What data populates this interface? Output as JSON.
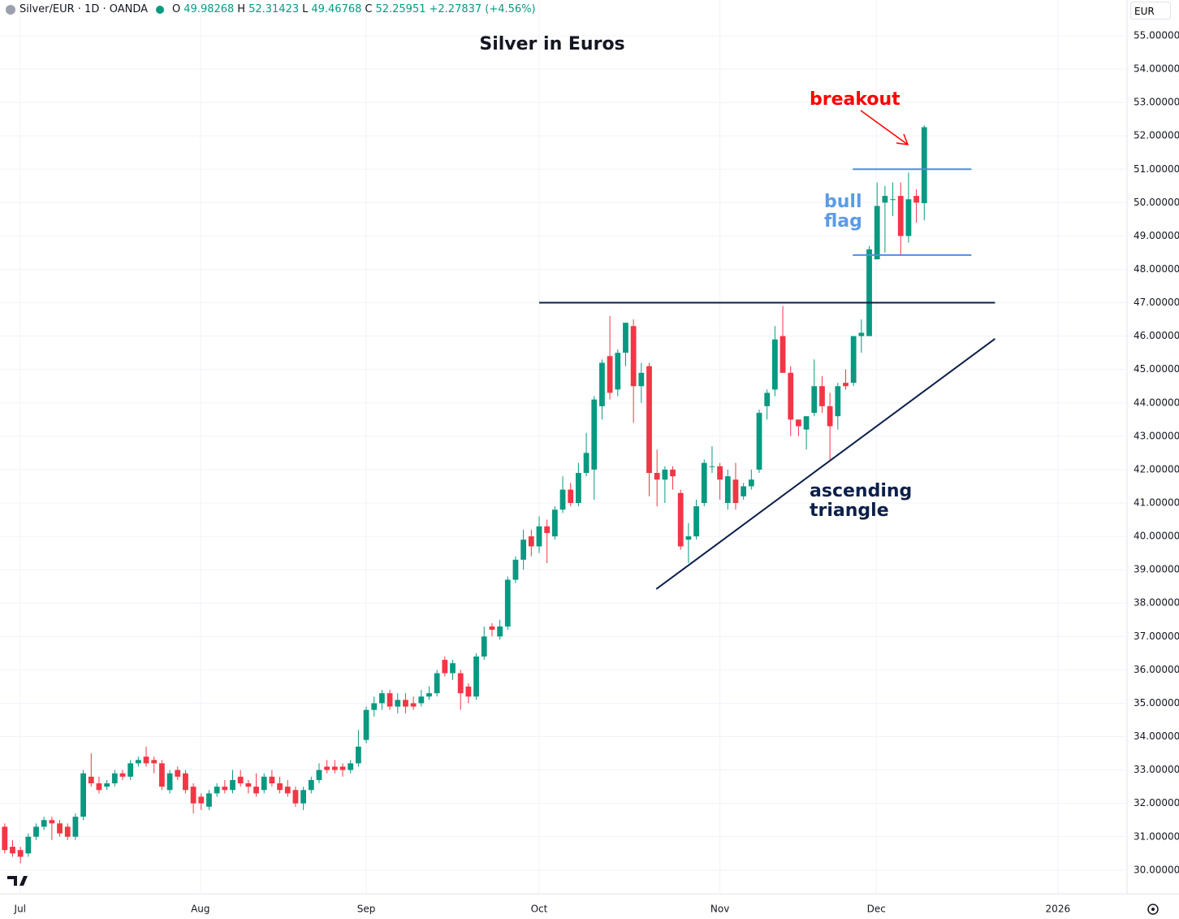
{
  "header": {
    "symbol": "Silver/EUR · 1D · OANDA",
    "o_label": "O",
    "o": "49.98268",
    "h_label": "H",
    "h": "52.31423",
    "l_label": "L",
    "l": "49.46768",
    "c_label": "C",
    "c": "52.25951",
    "change": "+2.27837 (+4.56%)",
    "currency": "EUR"
  },
  "chart_data": {
    "type": "candlestick",
    "title": "Silver in Euros",
    "open": [
      31.3,
      30.7,
      30.6,
      30.5,
      31.0,
      31.3,
      31.5,
      31.4,
      31.3,
      31.0,
      31.6,
      32.8,
      32.6,
      32.5,
      32.6,
      32.9,
      32.8,
      33.2,
      33.4,
      33.3,
      33.2,
      32.4,
      33.0,
      32.9,
      32.5,
      32.2,
      31.9,
      32.3,
      32.5,
      32.4,
      32.8,
      32.6,
      32.5,
      32.4,
      32.8,
      32.6,
      32.5,
      32.4,
      32.0,
      32.4,
      32.7,
      33.1,
      33.1,
      33.1,
      33.0,
      33.2,
      33.9,
      34.8,
      35.0,
      35.3,
      34.9,
      35.1,
      35.0,
      35.0,
      35.2,
      35.3,
      36.3,
      35.9,
      35.9,
      35.5,
      35.2,
      36.4,
      37.3,
      37.0,
      37.3,
      38.7,
      39.3,
      40.0,
      39.7,
      40.3,
      40.0,
      40.8,
      41.4,
      41.0,
      41.9,
      42.0,
      43.9,
      45.4,
      44.4,
      45.5,
      46.3,
      44.5,
      45.1,
      41.9,
      41.7,
      42.0,
      41.3,
      39.9,
      40.0,
      41.0,
      42.1,
      42.1,
      41.0,
      41.7,
      41.2,
      41.5,
      42.0,
      43.9,
      44.4,
      46.0,
      44.9,
      43.5,
      43.2,
      43.7,
      44.5,
      43.9,
      43.6,
      44.6,
      44.6,
      46.0,
      46.0,
      48.3,
      50.0,
      50.1,
      50.2,
      49.0,
      50.2,
      49.98268
    ],
    "high": [
      31.4,
      30.9,
      30.7,
      31.1,
      31.4,
      31.6,
      31.6,
      31.5,
      31.4,
      31.7,
      33.0,
      33.5,
      32.8,
      32.7,
      33.0,
      33.0,
      33.3,
      33.4,
      33.7,
      33.4,
      33.3,
      33.0,
      33.1,
      33.0,
      32.6,
      32.3,
      32.4,
      32.6,
      32.7,
      33.0,
      33.0,
      32.7,
      32.9,
      32.9,
      33.0,
      32.8,
      32.7,
      32.5,
      32.5,
      32.8,
      33.2,
      33.3,
      33.3,
      33.2,
      33.3,
      34.2,
      34.9,
      35.2,
      35.4,
      35.4,
      35.3,
      35.3,
      35.2,
      35.4,
      35.5,
      36.0,
      36.4,
      36.3,
      36.0,
      35.6,
      36.5,
      37.3,
      37.4,
      37.5,
      38.8,
      39.4,
      40.2,
      40.2,
      40.6,
      40.5,
      40.9,
      41.8,
      41.6,
      42.2,
      43.1,
      44.2,
      45.3,
      46.6,
      45.6,
      46.4,
      46.5,
      45.2,
      45.2,
      42.6,
      42.1,
      42.1,
      41.4,
      40.4,
      41.1,
      42.3,
      42.7,
      42.2,
      42.0,
      42.2,
      41.6,
      42.0,
      43.8,
      44.4,
      46.3,
      46.9,
      45.1,
      43.5,
      43.6,
      45.3,
      44.8,
      44.3,
      44.6,
      45.0,
      46.0,
      46.5,
      48.7,
      50.6,
      50.5,
      50.6,
      50.6,
      50.9,
      50.4,
      52.31423
    ],
    "low": [
      30.5,
      30.4,
      30.2,
      30.4,
      30.9,
      31.2,
      30.9,
      31.0,
      30.9,
      30.9,
      31.5,
      32.5,
      32.3,
      32.4,
      32.5,
      32.7,
      32.7,
      33.1,
      33.1,
      32.9,
      32.4,
      32.3,
      32.7,
      32.3,
      31.7,
      31.8,
      31.8,
      32.2,
      32.3,
      32.3,
      32.5,
      32.3,
      32.2,
      32.3,
      32.5,
      32.3,
      32.2,
      31.9,
      31.8,
      32.3,
      32.6,
      32.9,
      32.9,
      32.8,
      32.9,
      33.1,
      33.8,
      34.6,
      34.8,
      34.8,
      34.7,
      34.7,
      34.8,
      34.9,
      35.1,
      35.2,
      35.8,
      35.7,
      34.8,
      35.0,
      35.1,
      36.3,
      37.0,
      36.9,
      37.2,
      38.6,
      39.0,
      39.4,
      39.5,
      39.2,
      39.9,
      40.7,
      40.9,
      40.9,
      41.8,
      41.1,
      43.5,
      44.1,
      44.2,
      45.1,
      43.4,
      44.0,
      41.2,
      40.9,
      41.0,
      41.4,
      39.6,
      39.2,
      39.9,
      40.9,
      41.9,
      41.1,
      40.8,
      40.8,
      41.1,
      41.4,
      41.9,
      43.5,
      44.2,
      44.9,
      43.0,
      43.0,
      42.6,
      43.6,
      43.7,
      42.3,
      43.2,
      44.4,
      44.5,
      45.5,
      46.0,
      48.3,
      48.5,
      49.6,
      48.4,
      48.8,
      49.4,
      49.46768
    ],
    "close": [
      30.6,
      30.5,
      30.4,
      31.0,
      31.3,
      31.5,
      31.4,
      31.1,
      31.0,
      31.6,
      32.9,
      32.6,
      32.4,
      32.6,
      32.9,
      32.8,
      33.2,
      33.3,
      33.2,
      33.2,
      32.5,
      32.9,
      32.8,
      32.4,
      32.0,
      32.0,
      32.3,
      32.5,
      32.4,
      32.7,
      32.6,
      32.5,
      32.3,
      32.8,
      32.6,
      32.4,
      32.3,
      32.0,
      32.4,
      32.7,
      33.0,
      33.0,
      33.0,
      33.0,
      33.2,
      33.7,
      34.8,
      35.0,
      35.3,
      34.9,
      35.1,
      34.9,
      34.9,
      35.2,
      35.3,
      35.9,
      35.9,
      36.2,
      35.3,
      35.2,
      36.4,
      37.0,
      37.2,
      37.3,
      38.7,
      39.3,
      39.9,
      39.7,
      40.3,
      40.1,
      40.8,
      41.4,
      41.0,
      41.9,
      42.5,
      44.1,
      45.2,
      44.3,
      45.5,
      46.4,
      44.5,
      44.9,
      41.9,
      41.7,
      42.0,
      41.8,
      39.7,
      40.0,
      40.9,
      42.2,
      42.1,
      41.7,
      41.8,
      41.0,
      41.5,
      41.7,
      43.7,
      44.3,
      45.9,
      44.9,
      43.5,
      43.3,
      43.6,
      44.5,
      43.9,
      43.3,
      44.5,
      44.5,
      46.0,
      46.1,
      48.6,
      49.9,
      50.2,
      50.1,
      49.0,
      50.1,
      50.0,
      52.25951
    ],
    "up_color": "#089981",
    "down_color": "#f23645",
    "xlim": [
      -0.6,
      142.8
    ],
    "xticks": [
      {
        "value": 1.96,
        "label": "Jul"
      },
      {
        "value": 24.9,
        "label": "Aug"
      },
      {
        "value": 46.0,
        "label": "Sep"
      },
      {
        "value": 68.0,
        "label": "Oct"
      },
      {
        "value": 91.0,
        "label": "Nov"
      },
      {
        "value": 110.9,
        "label": "Dec"
      },
      {
        "value": 134.0,
        "label": "2026"
      }
    ],
    "ylim": [
      29.29,
      56.07
    ],
    "yticks": [
      {
        "value": 30,
        "label": "30.00000"
      },
      {
        "value": 31,
        "label": "31.00000"
      },
      {
        "value": 32,
        "label": "32.00000"
      },
      {
        "value": 33,
        "label": "33.00000"
      },
      {
        "value": 34,
        "label": "34.00000"
      },
      {
        "value": 35,
        "label": "35.00000"
      },
      {
        "value": 36,
        "label": "36.00000"
      },
      {
        "value": 37,
        "label": "37.00000"
      },
      {
        "value": 38,
        "label": "38.00000"
      },
      {
        "value": 39,
        "label": "39.00000"
      },
      {
        "value": 40,
        "label": "40.00000"
      },
      {
        "value": 41,
        "label": "41.00000"
      },
      {
        "value": 42,
        "label": "42.00000"
      },
      {
        "value": 43,
        "label": "43.00000"
      },
      {
        "value": 44,
        "label": "44.00000"
      },
      {
        "value": 45,
        "label": "45.00000"
      },
      {
        "value": 46,
        "label": "46.00000"
      },
      {
        "value": 47,
        "label": "47.00000"
      },
      {
        "value": 48,
        "label": "48.00000"
      },
      {
        "value": 49,
        "label": "49.00000"
      },
      {
        "value": 50,
        "label": "50.00000"
      },
      {
        "value": 51,
        "label": "51.00000"
      },
      {
        "value": 52,
        "label": "52.00000"
      },
      {
        "value": 53,
        "label": "53.00000"
      },
      {
        "value": 54,
        "label": "54.00000"
      },
      {
        "value": 55,
        "label": "55.00000"
      }
    ],
    "grid": true,
    "lines": [
      {
        "x": [
          68.0,
          126.0
        ],
        "y": [
          47.0,
          47.0
        ],
        "color": "#0c1f4a"
      },
      {
        "x": [
          82.9,
          126.0
        ],
        "y": [
          38.42,
          45.92
        ],
        "color": "#0c1f4a"
      },
      {
        "x": [
          107.9,
          123.0
        ],
        "y": [
          51.0,
          51.0
        ],
        "color": "#4a90e2"
      },
      {
        "x": [
          107.9,
          123.0
        ],
        "y": [
          48.43,
          48.43
        ],
        "color": "#4a90e2"
      }
    ],
    "annotations": [
      "breakout",
      "bull",
      "flag",
      "ascending",
      "triangle"
    ]
  }
}
